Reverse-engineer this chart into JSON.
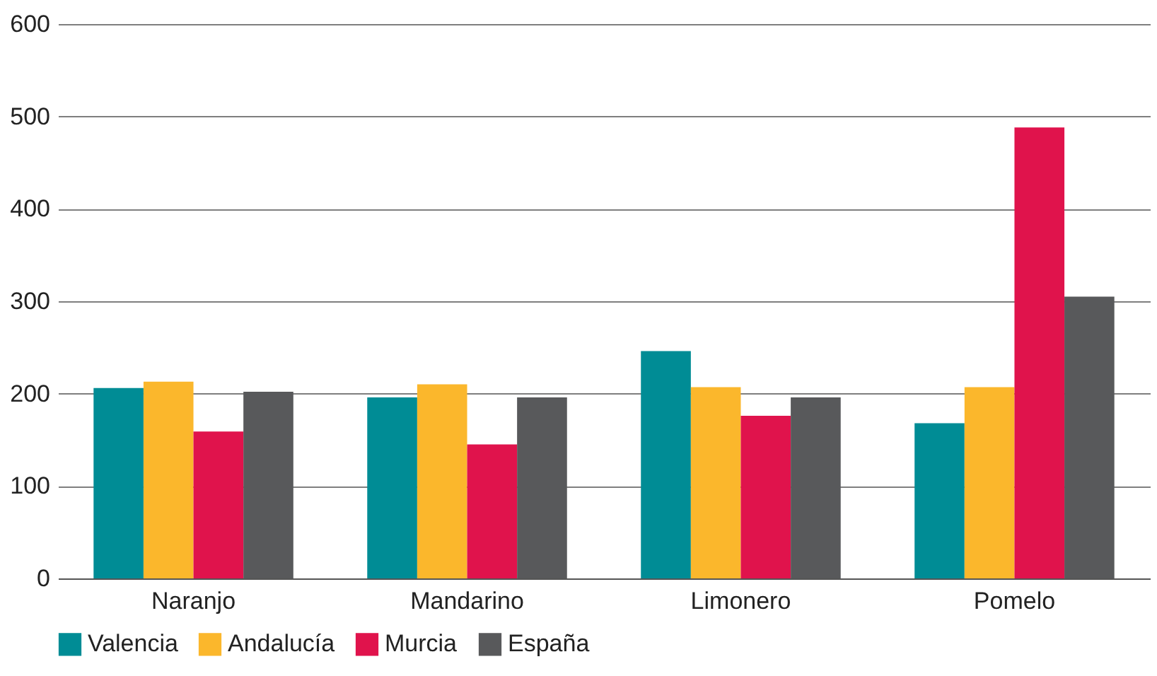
{
  "chart_data": {
    "type": "bar",
    "categories": [
      "Naranjo",
      "Mandarino",
      "Limonero",
      "Pomelo"
    ],
    "series": [
      {
        "name": "Valencia",
        "color": "#008c95",
        "values": [
          206,
          196,
          246,
          168
        ]
      },
      {
        "name": "Andalucía",
        "color": "#fbb72c",
        "values": [
          213,
          210,
          207,
          207
        ]
      },
      {
        "name": "Murcia",
        "color": "#e0134c",
        "values": [
          159,
          145,
          176,
          488
        ]
      },
      {
        "name": "España",
        "color": "#58595b",
        "values": [
          202,
          196,
          196,
          305
        ]
      }
    ],
    "ylim": [
      0,
      600
    ],
    "yticks": [
      0,
      100,
      200,
      300,
      400,
      500,
      600
    ],
    "grid": "y",
    "legend": "bottom"
  }
}
